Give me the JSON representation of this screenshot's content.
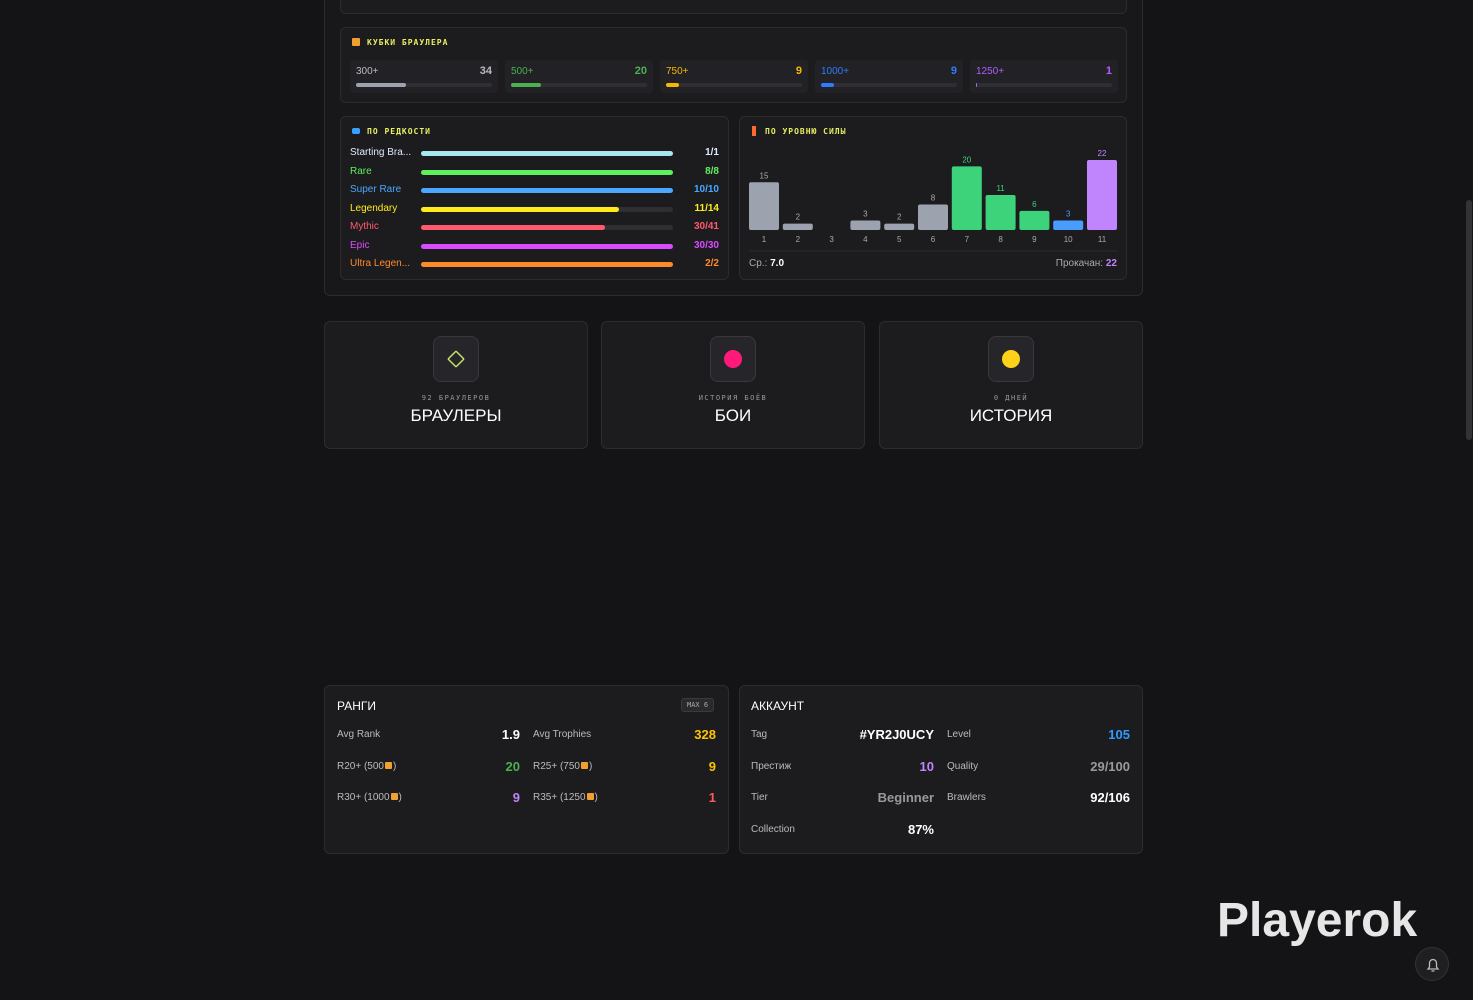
{
  "trophies": {
    "title": "КУБКИ БРАУЛЕРА",
    "items": [
      {
        "label": "300+",
        "count": 34,
        "color": "#9ca3af"
      },
      {
        "label": "500+",
        "count": 20,
        "color": "#4caf50"
      },
      {
        "label": "750+",
        "count": 9,
        "color": "#f5b800"
      },
      {
        "label": "1000+",
        "count": 9,
        "color": "#2f7bff"
      },
      {
        "label": "1250+",
        "count": 1,
        "color": "#b05cff"
      }
    ]
  },
  "rarity": {
    "title": "ПО РЕДКОСТИ",
    "items": [
      {
        "name": "Starting Bra...",
        "owned": 1,
        "total": 1,
        "value_label": "1/1",
        "color": "#a8e6f0",
        "text_color": "#dfe8ff"
      },
      {
        "name": "Rare",
        "owned": 8,
        "total": 8,
        "value_label": "8/8",
        "color": "#5ff05f",
        "text_color": "#5ff05f"
      },
      {
        "name": "Super Rare",
        "owned": 10,
        "total": 10,
        "value_label": "10/10",
        "color": "#4aa8ff",
        "text_color": "#4aa8ff"
      },
      {
        "name": "Legendary",
        "owned": 11,
        "total": 14,
        "value_label": "11/14",
        "color": "#ffeb1a",
        "text_color": "#ffeb1a"
      },
      {
        "name": "Mythic",
        "owned": 30,
        "total": 41,
        "value_label": "30/41",
        "color": "#ff5a6e",
        "text_color": "#ff5a6e"
      },
      {
        "name": "Epic",
        "owned": 30,
        "total": 30,
        "value_label": "30/30",
        "color": "#d94bff",
        "text_color": "#d94bff"
      },
      {
        "name": "Ultra Legen...",
        "owned": 2,
        "total": 2,
        "value_label": "2/2",
        "color": "#ff8a2a",
        "text_color": "#ff8a2a"
      }
    ]
  },
  "power": {
    "title": "ПО УРОВНЮ СИЛЫ",
    "type": "bar",
    "categories": [
      "1",
      "2",
      "3",
      "4",
      "5",
      "6",
      "7",
      "8",
      "9",
      "10",
      "11"
    ],
    "values": [
      15,
      2,
      0,
      3,
      2,
      8,
      20,
      11,
      6,
      3,
      22
    ],
    "value_labels": [
      "15",
      "2",
      null,
      "3",
      "2",
      "8",
      "20",
      "11",
      "6",
      "3",
      "22"
    ],
    "colors": [
      "#9ca3af",
      "#9ca3af",
      "#9ca3af",
      "#9ca3af",
      "#9ca3af",
      "#9ca3af",
      "#3dd37a",
      "#3dd37a",
      "#3dd37a",
      "#4a9cff",
      "#c084fc"
    ],
    "label_colors": [
      "#aaa",
      "#aaa",
      "#aaa",
      "#aaa",
      "#aaa",
      "#aaa",
      "#3dd37a",
      "#3dd37a",
      "#3dd37a",
      "#4a9cff",
      "#c084fc"
    ],
    "avg_label": "Ср.:",
    "avg_value": "7.0",
    "maxed_label": "Прокачан:",
    "maxed_value": 22
  },
  "cards": [
    {
      "count": 92,
      "unit": "БРАУЛЕРОВ",
      "title": "БРАУЛЕРЫ"
    },
    {
      "subtitle": "ИСТОРИЯ БОЁВ",
      "title": "БОИ"
    },
    {
      "subtitle": "0 ДНЕЙ",
      "title": "ИСТОРИЯ"
    }
  ],
  "ranks": {
    "title": "РАНГИ",
    "badge": "MAX 6",
    "items": [
      {
        "label": "Avg Rank",
        "value": 1.9,
        "color": "#ffffff"
      },
      {
        "label": "Avg Trophies",
        "value": 328,
        "color": "#ffc400"
      },
      {
        "label": "R20+ (500",
        "label_end": ")",
        "value": 20,
        "color": "#4caf50"
      },
      {
        "label": "R25+ (750",
        "label_end": ")",
        "value": 9,
        "color": "#ffc400"
      },
      {
        "label": "R30+ (1000",
        "label_end": ")",
        "value": 9,
        "color": "#c084fc"
      },
      {
        "label": "R35+ (1250",
        "label_end": ")",
        "value": 1,
        "color": "#ff5a5a"
      }
    ]
  },
  "account": {
    "title": "АККАУНТ",
    "items": [
      {
        "label": "Tag",
        "value": "#YR2J0UCY",
        "color": "#ffffff"
      },
      {
        "label": "Level",
        "value": 105,
        "color": "#2f9bff"
      },
      {
        "label": "Престиж",
        "value": 10,
        "color": "#c084fc"
      },
      {
        "label": "Quality",
        "value": "29/100",
        "color": "#9a9a9a"
      },
      {
        "label": "Tier",
        "value": "Beginner",
        "color": "#9a9a9a"
      },
      {
        "label": "Brawlers",
        "value": "92/106",
        "color": "#ffffff"
      },
      {
        "label": "Collection",
        "value": "87%",
        "color": "#ffffff"
      }
    ]
  },
  "watermark": "Playerok"
}
